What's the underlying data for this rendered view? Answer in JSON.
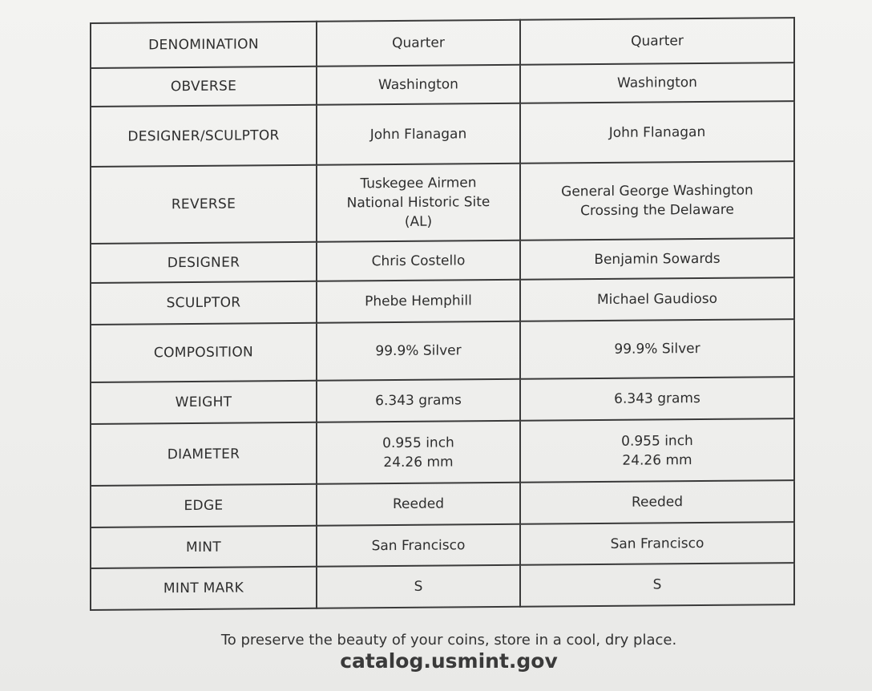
{
  "rows": [
    {
      "label": "DENOMINATION",
      "col1": "Quarter",
      "col2": "Quarter"
    },
    {
      "label": "OBVERSE",
      "col1": "Washington",
      "col2": "Washington"
    },
    {
      "label": "DESIGNER/SCULPTOR",
      "col1": "John Flanagan",
      "col2": "John Flanagan"
    },
    {
      "label": "REVERSE",
      "col1": "Tuskegee Airmen\nNational Historic Site\n(AL)",
      "col2": "General George Washington\nCrossing the Delaware"
    },
    {
      "label": "DESIGNER",
      "col1": "Chris Costello",
      "col2": "Benjamin Sowards"
    },
    {
      "label": "SCULPTOR",
      "col1": "Phebe Hemphill",
      "col2": "Michael Gaudioso"
    },
    {
      "label": "COMPOSITION",
      "col1": "99.9% Silver",
      "col2": "99.9% Silver"
    },
    {
      "label": "WEIGHT",
      "col1": "6.343 grams",
      "col2": "6.343 grams"
    },
    {
      "label": "DIAMETER",
      "col1": "0.955 inch\n24.26 mm",
      "col2": "0.955 inch\n24.26 mm"
    },
    {
      "label": "EDGE",
      "col1": "Reeded",
      "col2": "Reeded"
    },
    {
      "label": "MINT",
      "col1": "San Francisco",
      "col2": "San Francisco"
    },
    {
      "label": "MINT MARK",
      "col1": "S",
      "col2": "S"
    }
  ],
  "footer": {
    "note": "To preserve the beauty of your coins, store in a cool, dry place.",
    "url": "catalog.usmint.gov"
  }
}
